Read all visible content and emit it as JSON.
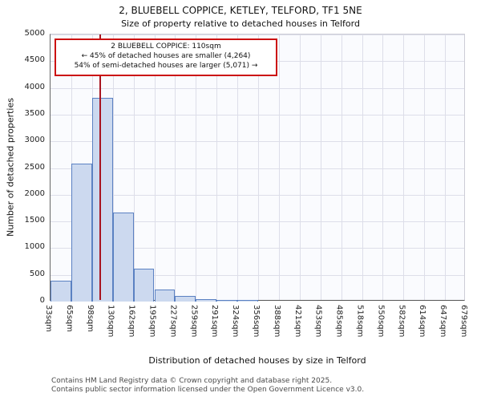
{
  "title": {
    "line1": "2, BLUEBELL COPPICE, KETLEY, TELFORD, TF1 5NE",
    "line2": "Size of property relative to detached houses in Telford"
  },
  "annotation": {
    "line1": "2 BLUEBELL COPPICE: 110sqm",
    "line2": "← 45% of detached houses are smaller (4,264)",
    "line3": "54% of semi-detached houses are larger (5,071) →"
  },
  "footer": {
    "line1": "Contains HM Land Registry data © Crown copyright and database right 2025.",
    "line2": "Contains public sector information licensed under the Open Government Licence v3.0."
  },
  "chart_data": {
    "type": "bar",
    "title": "2, BLUEBELL COPPICE, KETLEY, TELFORD, TF1 5NE",
    "subtitle": "Size of property relative to detached houses in Telford",
    "xlabel": "Distribution of detached houses by size in Telford",
    "ylabel": "Number of detached properties",
    "x_tick_labels": [
      "33sqm",
      "65sqm",
      "98sqm",
      "130sqm",
      "162sqm",
      "195sqm",
      "227sqm",
      "259sqm",
      "291sqm",
      "324sqm",
      "356sqm",
      "388sqm",
      "421sqm",
      "453sqm",
      "485sqm",
      "518sqm",
      "550sqm",
      "582sqm",
      "614sqm",
      "647sqm",
      "679sqm"
    ],
    "bin_edges_sqm": [
      33,
      65,
      98,
      130,
      162,
      195,
      227,
      259,
      291,
      324,
      356,
      388,
      421,
      453,
      485,
      518,
      550,
      582,
      614,
      647,
      679
    ],
    "values": [
      390,
      2580,
      3810,
      1660,
      620,
      230,
      105,
      45,
      30,
      25,
      0,
      0,
      0,
      0,
      0,
      0,
      0,
      0,
      0,
      0
    ],
    "ylim": [
      0,
      5000
    ],
    "y_ticks": [
      0,
      500,
      1000,
      1500,
      2000,
      2500,
      3000,
      3500,
      4000,
      4500,
      5000
    ],
    "grid": true,
    "legend": "none",
    "marker_value_sqm": 110,
    "colors": {
      "bar_fill": "#ccd9ef",
      "bar_edge": "#5b81c2",
      "marker_line": "#a81420",
      "annotation_border": "#cc1111",
      "grid": "#dddee9"
    }
  }
}
